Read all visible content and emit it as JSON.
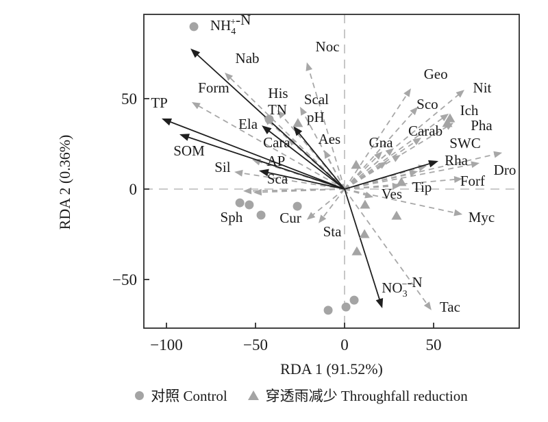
{
  "colors": {
    "env_arrow": "#1f1f1f",
    "species_arrow": "#a7a7a7",
    "sample_marker": "#a4a4a4",
    "reference_line": "#b9b9b9",
    "axis": "#2e2e2e",
    "text": "#1a1a1a"
  },
  "legend": {
    "items": [
      {
        "marker": "circle",
        "label": "对照 Control"
      },
      {
        "marker": "triangle",
        "label": "穿透雨减少 Throughfall reduction"
      }
    ]
  },
  "chart_data": {
    "type": "scatter",
    "subtype": "rda-biplot",
    "title": "",
    "xlabel": "RDA 1 (91.52%)",
    "ylabel": "RDA 2 (0.36%)",
    "xlim": [
      -113,
      98
    ],
    "ylim": [
      -77,
      96.5
    ],
    "xticks": [
      -100,
      -50,
      0,
      50
    ],
    "yticks": [
      -50,
      0,
      50
    ],
    "grid": false,
    "env_arrows": [
      {
        "name": "NH4-N",
        "x": -86.5,
        "y": 77.7,
        "label_x": -64.0,
        "label_y": 90.5,
        "parts": [
          [
            "NH",
            ""
          ],
          [
            "4",
            "sub"
          ],
          [
            "+",
            "sup"
          ],
          [
            "-N",
            ""
          ]
        ]
      },
      {
        "name": "TP",
        "x": -102.7,
        "y": 39.0,
        "label_x": -104.0,
        "label_y": 47.7
      },
      {
        "name": "SOM",
        "x": -92.7,
        "y": 30.3,
        "label_x": -87.3,
        "label_y": 21.2
      },
      {
        "name": "TN",
        "x": -46.5,
        "y": 35.2,
        "label_x": -37.7,
        "label_y": 43.9
      },
      {
        "name": "pH",
        "x": -28.8,
        "y": 34.8,
        "label_x": -16.2,
        "label_y": 39.8
      },
      {
        "name": "AP",
        "x": -48.1,
        "y": 10.2,
        "label_x": -38.5,
        "label_y": 15.5
      },
      {
        "name": "SWC",
        "x": 52.7,
        "y": 15.5,
        "label_x": 67.7,
        "label_y": 25.4
      },
      {
        "name": "NO3-N",
        "x": 21.2,
        "y": -65.9,
        "label_x": 32.3,
        "label_y": -54.5,
        "parts": [
          [
            "NO",
            ""
          ],
          [
            "3",
            "sub"
          ],
          [
            "−",
            "sup"
          ],
          [
            "-N",
            ""
          ]
        ]
      }
    ],
    "species_arrows": [
      {
        "name": "Nab",
        "x": -67.3,
        "y": 64.4,
        "label_x": -54.6,
        "label_y": 72.3
      },
      {
        "name": "Form",
        "x": -85.8,
        "y": 48.1,
        "label_x": -73.5,
        "label_y": 56.1
      },
      {
        "name": "Noc",
        "x": -21.2,
        "y": 70.1,
        "label_x": -9.6,
        "label_y": 78.8
      },
      {
        "name": "Scal",
        "x": -25.0,
        "y": 45.5,
        "label_x": -15.8,
        "label_y": 49.6
      },
      {
        "name": "His",
        "x": -37.7,
        "y": 43.6,
        "label_x": -37.3,
        "label_y": 53.0
      },
      {
        "name": "Ela",
        "x": -45.4,
        "y": 39.8,
        "label_x": -54.2,
        "label_y": 36.0
      },
      {
        "name": "Cara",
        "x": -31.9,
        "y": 28.4,
        "label_x": -38.1,
        "label_y": 25.8
      },
      {
        "name": "Aes",
        "x": -11.5,
        "y": 21.6,
        "label_x": -8.5,
        "label_y": 27.7
      },
      {
        "name": "Sil",
        "x": -61.9,
        "y": 9.5,
        "label_x": -68.5,
        "label_y": 12.1
      },
      {
        "name": "Sca",
        "x": -51.9,
        "y": 16.3,
        "label_x": -37.7,
        "label_y": 5.7
      },
      {
        "name": "Sph",
        "x": -56.9,
        "y": -1.1,
        "label_x": -63.5,
        "label_y": -15.5
      },
      {
        "name": "Cur",
        "x": -14.6,
        "y": -18.9,
        "label_x": -30.4,
        "label_y": -15.9
      },
      {
        "name": "Sta",
        "x": -21.2,
        "y": -17.0,
        "label_x": -6.9,
        "label_y": -23.5
      },
      {
        "name": "Geo",
        "x": 37.3,
        "y": 55.7,
        "label_x": 51.2,
        "label_y": 63.6
      },
      {
        "name": "Nit",
        "x": 67.3,
        "y": 54.9,
        "label_x": 77.3,
        "label_y": 56.1
      },
      {
        "name": "Sco",
        "x": 41.2,
        "y": 45.5,
        "label_x": 46.5,
        "label_y": 47.0
      },
      {
        "name": "Ich",
        "x": 58.5,
        "y": 41.7,
        "label_x": 70.0,
        "label_y": 43.6
      },
      {
        "name": "Pha",
        "x": 61.2,
        "y": 36.7,
        "label_x": 76.9,
        "label_y": 35.2
      },
      {
        "name": "Carab",
        "x": 43.1,
        "y": 28.4,
        "label_x": 45.4,
        "label_y": 32.2
      },
      {
        "name": "Gna",
        "x": 21.2,
        "y": 20.8,
        "label_x": 20.4,
        "label_y": 25.8
      },
      {
        "name": "Rha",
        "x": 75.8,
        "y": 14.4,
        "label_x": 62.7,
        "label_y": 15.9
      },
      {
        "name": "Dro",
        "x": 88.5,
        "y": 20.1,
        "label_x": 90.0,
        "label_y": 10.6
      },
      {
        "name": "Forf",
        "x": 66.2,
        "y": 5.7,
        "label_x": 71.9,
        "label_y": 4.5
      },
      {
        "name": "Tip",
        "x": 31.5,
        "y": 1.9,
        "label_x": 43.5,
        "label_y": 1.1
      },
      {
        "name": "Ves",
        "x": 16.2,
        "y": -4.5,
        "label_x": 26.5,
        "label_y": -2.7
      },
      {
        "name": "Myc",
        "x": 66.2,
        "y": -14.0,
        "label_x": 76.9,
        "label_y": -15.5
      },
      {
        "name": "Tac",
        "x": 48.8,
        "y": -67.0,
        "label_x": 59.2,
        "label_y": -65.2
      },
      {
        "name": "",
        "x": -51.2,
        "y": -1.9
      },
      {
        "name": "",
        "x": 27.7,
        "y": 22.7
      },
      {
        "name": "",
        "x": 31.5,
        "y": 18.9
      },
      {
        "name": "",
        "x": 23.8,
        "y": 15.2
      },
      {
        "name": "",
        "x": 46.2,
        "y": 12.9
      },
      {
        "name": "",
        "x": 41.2,
        "y": 9.8
      }
    ],
    "samples": {
      "control": [
        [
          -84.6,
          89.8
        ],
        [
          -42.3,
          38.6
        ],
        [
          -58.8,
          -7.6
        ],
        [
          -53.5,
          -8.7
        ],
        [
          -46.9,
          -14.4
        ],
        [
          -26.5,
          -9.5
        ],
        [
          -9.2,
          -67.0
        ],
        [
          0.8,
          -65.2
        ],
        [
          5.4,
          -61.4
        ]
      ],
      "treatment": [
        [
          11.5,
          -8.7
        ],
        [
          29.2,
          -14.8
        ],
        [
          11.2,
          -25.0
        ],
        [
          6.9,
          -34.5
        ],
        [
          59.2,
          39.0
        ],
        [
          57.7,
          36.4
        ],
        [
          31.9,
          3.8
        ],
        [
          -26.2,
          36.4
        ],
        [
          6.5,
          13.3
        ]
      ]
    },
    "legend_position": "bottom"
  }
}
